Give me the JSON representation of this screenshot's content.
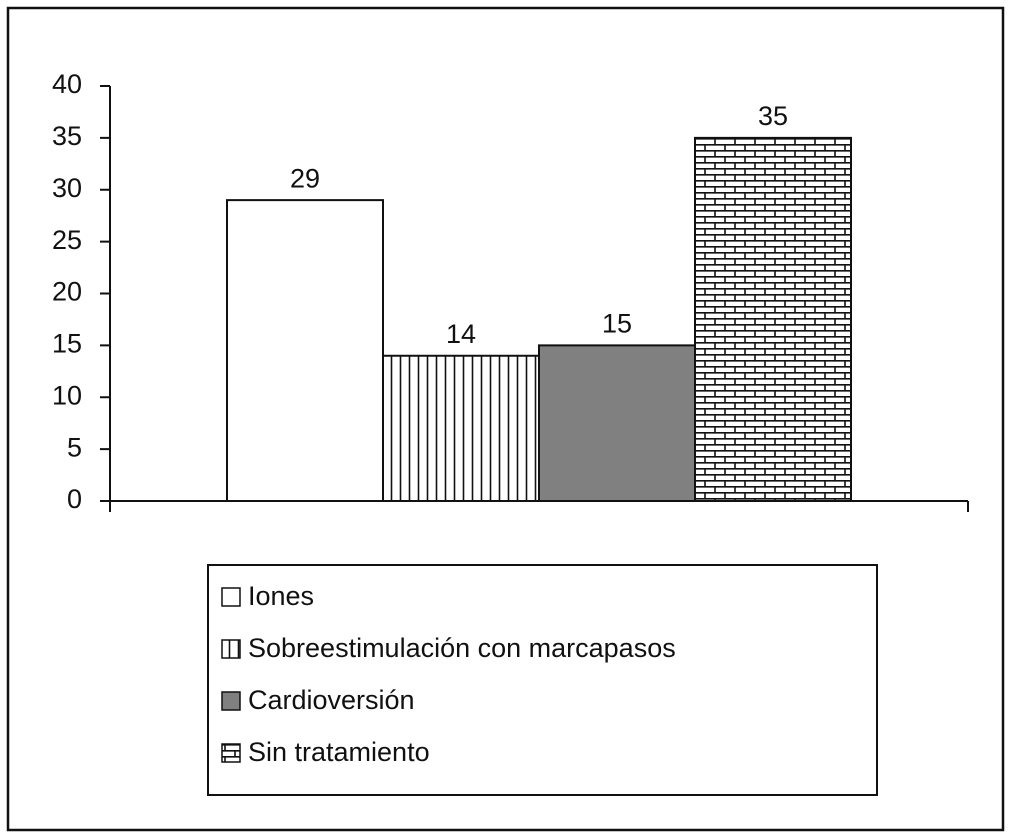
{
  "chart_data": {
    "type": "bar",
    "categories": [
      null
    ],
    "series": [
      {
        "name": "Iones",
        "color": "#ffffff",
        "pattern": "solid",
        "values": [
          29
        ]
      },
      {
        "name": "Sobreestimulación con marcapasos",
        "color": "#ffffff",
        "pattern": "vertical-lines",
        "values": [
          14
        ]
      },
      {
        "name": "Cardioversión",
        "color": "#808080",
        "pattern": "solid",
        "values": [
          15
        ]
      },
      {
        "name": "Sin tratamiento",
        "color": "#ffffff",
        "pattern": "brick",
        "values": [
          35
        ]
      }
    ],
    "ylim": [
      0,
      40
    ],
    "yticks": [
      0,
      5,
      10,
      15,
      20,
      25,
      30,
      35,
      40
    ],
    "grid": false,
    "legend": "bottom"
  }
}
